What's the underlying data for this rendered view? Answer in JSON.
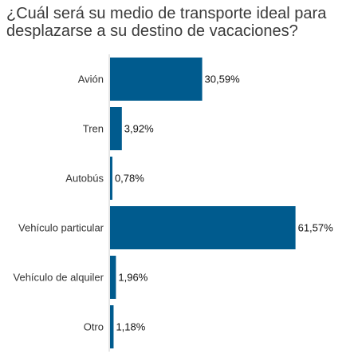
{
  "chart_data": {
    "type": "bar",
    "orientation": "horizontal",
    "title": "¿Cuál será su medio de transporte ideal para desplazarse a su destino de vacaciones?",
    "categories": [
      "Avión",
      "Tren",
      "Autobús",
      "Vehículo particular",
      "Vehículo de alquiler",
      "Otro"
    ],
    "values": [
      30.59,
      3.92,
      0.78,
      61.57,
      1.96,
      1.18
    ],
    "value_labels": [
      "30,59%",
      "3,92%",
      "0,78%",
      "61,57%",
      "1,96%",
      "1,18%"
    ],
    "xlim": [
      0,
      63
    ],
    "grid": false,
    "bar_color": "#005b8e",
    "axis_color": "#cccccc"
  }
}
